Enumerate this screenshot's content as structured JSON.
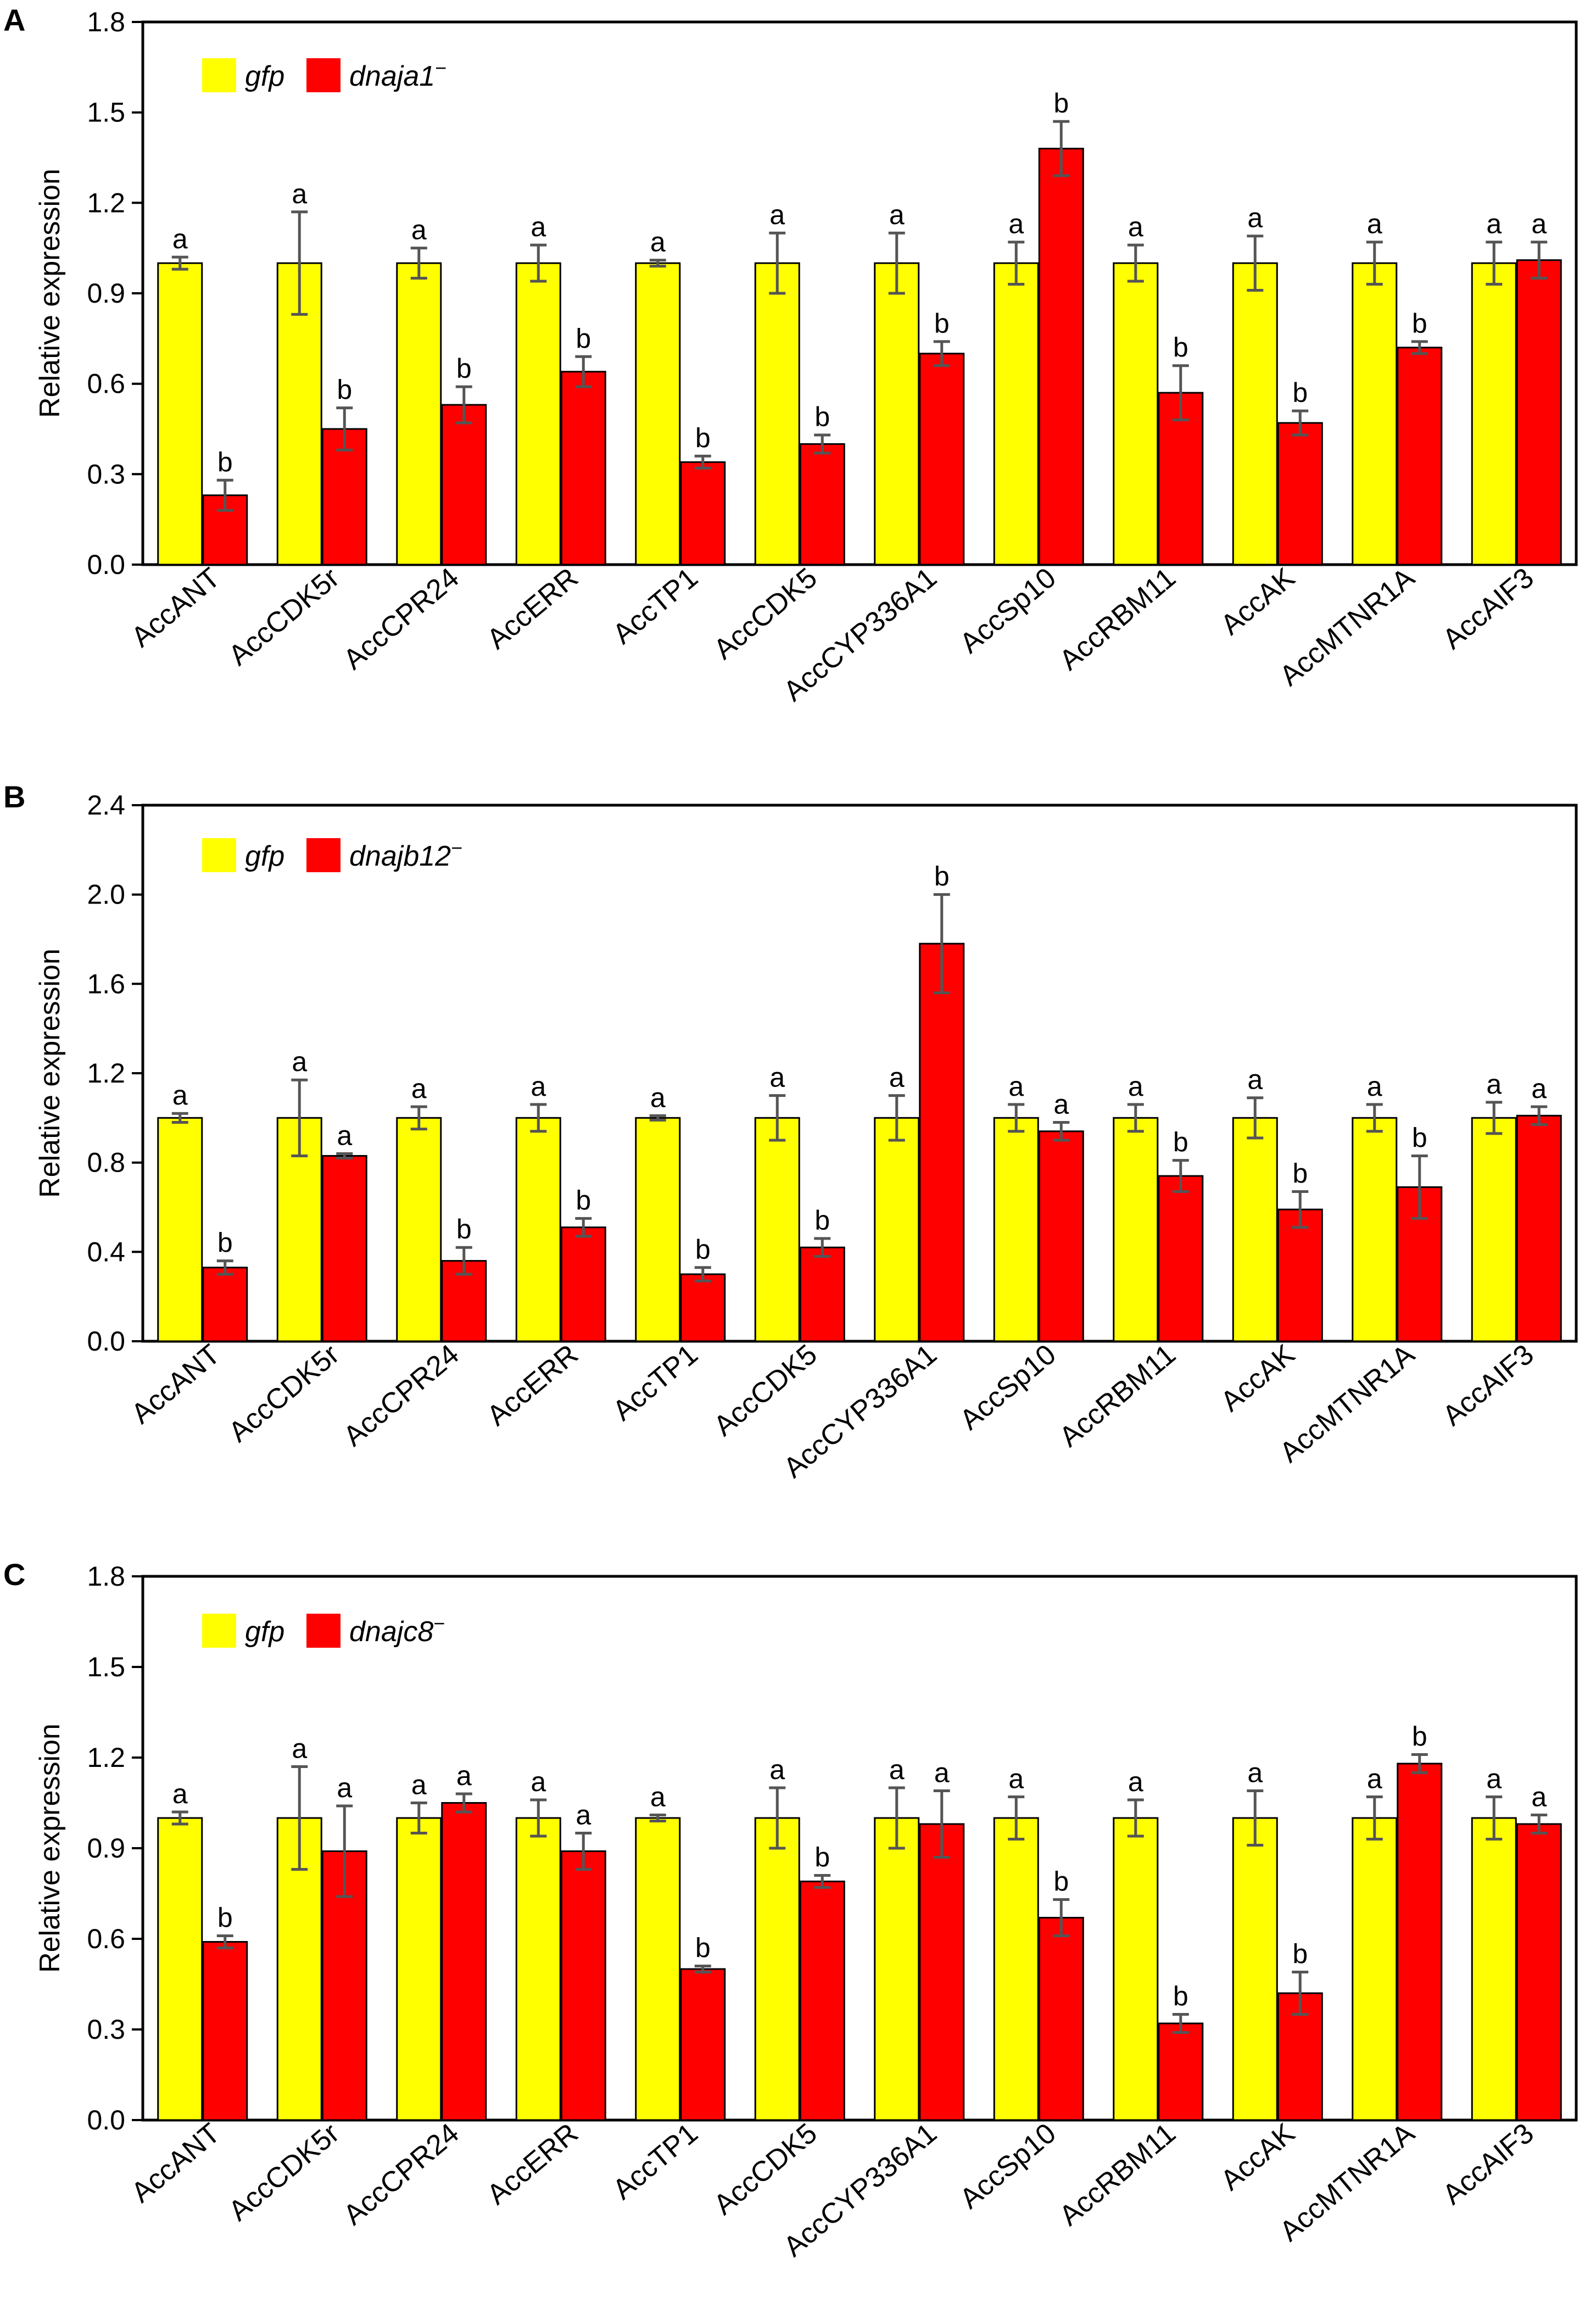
{
  "chart_data": [
    {
      "type": "bar",
      "panel": "A",
      "ylabel": "Relative expression",
      "ylim": [
        0,
        1.8
      ],
      "yticks": [
        "0.0",
        "0.3",
        "0.6",
        "0.9",
        "1.2",
        "1.5",
        "1.8"
      ],
      "categories": [
        "AccANT",
        "AccCDK5r",
        "AccCPR24",
        "AccERR",
        "AccTP1",
        "AccCDK5",
        "AccCYP336A1",
        "AccSp10",
        "AccRBM11",
        "AccAK",
        "AccMTNR1A",
        "AccAIF3"
      ],
      "legend": {
        "position": "top-left",
        "entries": [
          {
            "label": "gfp",
            "color": "#FFFF00"
          },
          {
            "label": "dnaja1",
            "superscript": "−",
            "color": "#FF0000"
          }
        ]
      },
      "series": [
        {
          "name": "gfp",
          "color": "#FFFF00",
          "values": [
            1.0,
            1.0,
            1.0,
            1.0,
            1.0,
            1.0,
            1.0,
            1.0,
            1.0,
            1.0,
            1.0,
            1.0
          ],
          "errors": [
            0.02,
            0.17,
            0.05,
            0.06,
            0.01,
            0.1,
            0.1,
            0.07,
            0.06,
            0.09,
            0.07,
            0.07
          ],
          "sig": [
            "a",
            "a",
            "a",
            "a",
            "a",
            "a",
            "a",
            "a",
            "a",
            "a",
            "a",
            "a"
          ]
        },
        {
          "name": "dnaja1−",
          "color": "#FF0000",
          "values": [
            0.23,
            0.45,
            0.53,
            0.64,
            0.34,
            0.4,
            0.7,
            1.38,
            0.57,
            0.47,
            0.72,
            1.01
          ],
          "errors": [
            0.05,
            0.07,
            0.06,
            0.05,
            0.02,
            0.03,
            0.04,
            0.09,
            0.09,
            0.04,
            0.02,
            0.06
          ],
          "sig": [
            "b",
            "b",
            "b",
            "b",
            "b",
            "b",
            "b",
            "b",
            "b",
            "b",
            "b",
            "a"
          ]
        }
      ]
    },
    {
      "type": "bar",
      "panel": "B",
      "ylabel": "Relative expression",
      "ylim": [
        0,
        2.4
      ],
      "yticks": [
        "0.0",
        "0.4",
        "0.8",
        "1.2",
        "1.6",
        "2.0",
        "2.4"
      ],
      "categories": [
        "AccANT",
        "AccCDK5r",
        "AccCPR24",
        "AccERR",
        "AccTP1",
        "AccCDK5",
        "AccCYP336A1",
        "AccSp10",
        "AccRBM11",
        "AccAK",
        "AccMTNR1A",
        "AccAIF3"
      ],
      "legend": {
        "position": "top-left",
        "entries": [
          {
            "label": "gfp",
            "color": "#FFFF00"
          },
          {
            "label": "dnajb12",
            "superscript": "−",
            "color": "#FF0000"
          }
        ]
      },
      "series": [
        {
          "name": "gfp",
          "color": "#FFFF00",
          "values": [
            1.0,
            1.0,
            1.0,
            1.0,
            1.0,
            1.0,
            1.0,
            1.0,
            1.0,
            1.0,
            1.0,
            1.0
          ],
          "errors": [
            0.02,
            0.17,
            0.05,
            0.06,
            0.01,
            0.1,
            0.1,
            0.06,
            0.06,
            0.09,
            0.06,
            0.07
          ],
          "sig": [
            "a",
            "a",
            "a",
            "a",
            "a",
            "a",
            "a",
            "a",
            "a",
            "a",
            "a",
            "a"
          ]
        },
        {
          "name": "dnajb12−",
          "color": "#FF0000",
          "values": [
            0.33,
            0.83,
            0.36,
            0.51,
            0.3,
            0.42,
            1.78,
            0.94,
            0.74,
            0.59,
            0.69,
            1.01
          ],
          "errors": [
            0.03,
            0.01,
            0.06,
            0.04,
            0.03,
            0.04,
            0.22,
            0.04,
            0.07,
            0.08,
            0.14,
            0.04
          ],
          "sig": [
            "b",
            "a",
            "b",
            "b",
            "b",
            "b",
            "b",
            "a",
            "b",
            "b",
            "b",
            "a"
          ]
        }
      ]
    },
    {
      "type": "bar",
      "panel": "C",
      "ylabel": "Relative expression",
      "ylim": [
        0,
        1.8
      ],
      "yticks": [
        "0.0",
        "0.3",
        "0.6",
        "0.9",
        "1.2",
        "1.5",
        "1.8"
      ],
      "categories": [
        "AccANT",
        "AccCDK5r",
        "AccCPR24",
        "AccERR",
        "AccTP1",
        "AccCDK5",
        "AccCYP336A1",
        "AccSp10",
        "AccRBM11",
        "AccAK",
        "AccMTNR1A",
        "AccAIF3"
      ],
      "legend": {
        "position": "top-left",
        "entries": [
          {
            "label": "gfp",
            "color": "#FFFF00"
          },
          {
            "label": "dnajc8",
            "superscript": "−",
            "color": "#FF0000"
          }
        ]
      },
      "series": [
        {
          "name": "gfp",
          "color": "#FFFF00",
          "values": [
            1.0,
            1.0,
            1.0,
            1.0,
            1.0,
            1.0,
            1.0,
            1.0,
            1.0,
            1.0,
            1.0,
            1.0
          ],
          "errors": [
            0.02,
            0.17,
            0.05,
            0.06,
            0.01,
            0.1,
            0.1,
            0.07,
            0.06,
            0.09,
            0.07,
            0.07
          ],
          "sig": [
            "a",
            "a",
            "a",
            "a",
            "a",
            "a",
            "a",
            "a",
            "a",
            "a",
            "a",
            "a"
          ]
        },
        {
          "name": "dnajc8−",
          "color": "#FF0000",
          "values": [
            0.59,
            0.89,
            1.05,
            0.89,
            0.5,
            0.79,
            0.98,
            0.67,
            0.32,
            0.42,
            1.18,
            0.98
          ],
          "errors": [
            0.02,
            0.15,
            0.03,
            0.06,
            0.01,
            0.02,
            0.11,
            0.06,
            0.03,
            0.07,
            0.03,
            0.03
          ],
          "sig": [
            "b",
            "a",
            "a",
            "a",
            "b",
            "b",
            "a",
            "b",
            "b",
            "b",
            "b",
            "a"
          ]
        }
      ]
    }
  ]
}
